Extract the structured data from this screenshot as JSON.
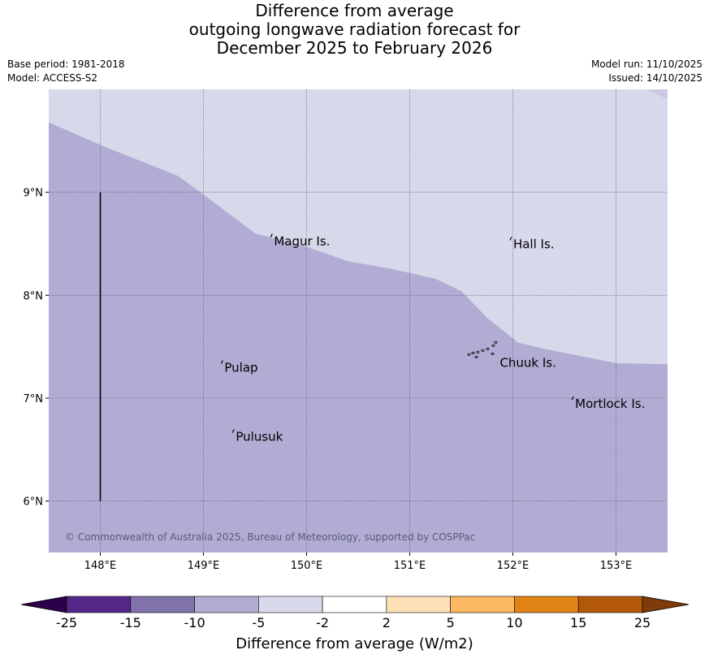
{
  "title": {
    "line1": "Difference from average",
    "line2": "outgoing longwave radiation forecast for",
    "line3": "December 2025 to February 2026"
  },
  "meta": {
    "base_period": "Base period: 1981-2018",
    "model": "Model: ACCESS-S2",
    "model_run": "Model run: 11/10/2025",
    "issued": "Issued: 14/10/2025"
  },
  "map": {
    "lon_range": [
      147.5,
      153.5
    ],
    "lat_range": [
      5.5,
      10.0
    ],
    "lon_ticks": [
      {
        "value": 148,
        "label": "148°E"
      },
      {
        "value": 149,
        "label": "149°E"
      },
      {
        "value": 150,
        "label": "150°E"
      },
      {
        "value": 151,
        "label": "151°E"
      },
      {
        "value": 152,
        "label": "152°E"
      },
      {
        "value": 153,
        "label": "153°E"
      }
    ],
    "lat_ticks": [
      {
        "value": 9,
        "label": "9°N"
      },
      {
        "value": 8,
        "label": "8°N"
      },
      {
        "value": 7,
        "label": "7°N"
      },
      {
        "value": 6,
        "label": "6°N"
      }
    ],
    "colors": {
      "band_minus10_minus5": "#b1acd3",
      "band_minus5_minus2": "#d8d8eb",
      "grid": "#555577",
      "boundary": "#000000"
    },
    "boundary_line": {
      "lon": 148,
      "lat_from": 6,
      "lat_to": 9
    },
    "contour_minus5": [
      [
        147.5,
        9.68
      ],
      [
        148.0,
        9.46
      ],
      [
        148.75,
        9.16
      ],
      [
        149.0,
        8.98
      ],
      [
        149.5,
        8.6
      ],
      [
        150.0,
        8.47
      ],
      [
        150.4,
        8.33
      ],
      [
        150.8,
        8.26
      ],
      [
        151.25,
        8.16
      ],
      [
        151.5,
        8.04
      ],
      [
        151.75,
        7.78
      ],
      [
        152.05,
        7.54
      ],
      [
        152.3,
        7.48
      ],
      [
        152.7,
        7.4
      ],
      [
        153.0,
        7.34
      ],
      [
        153.5,
        7.33
      ]
    ],
    "islands": [
      {
        "name": "Magur Is.",
        "lon": 149.66,
        "lat": 8.58
      },
      {
        "name": "Hall Is.",
        "lon": 151.98,
        "lat": 8.55
      },
      {
        "name": "Pulap",
        "lon": 149.18,
        "lat": 7.35
      },
      {
        "name": "Chuuk Is.",
        "lon": 151.85,
        "lat": 7.4
      },
      {
        "name": "Mortlock Is.",
        "lon": 152.58,
        "lat": 7.0
      },
      {
        "name": "Pulusuk",
        "lon": 149.29,
        "lat": 6.68
      }
    ],
    "copyright": "© Commonwealth of Australia 2025, Bureau of Meteorology, supported by COSPPac"
  },
  "colorbar": {
    "label": "Difference from average (W/m2)",
    "ticks": [
      "-25",
      "-15",
      "-10",
      "-5",
      "-2",
      "2",
      "5",
      "10",
      "15",
      "25"
    ],
    "colors": [
      "#542788",
      "#8073ac",
      "#b2abd2",
      "#d8daeb",
      "#ffffff",
      "#fee0b6",
      "#fdb863",
      "#e08214",
      "#b35806"
    ],
    "under_color": "#2d004b",
    "over_color": "#7f3b08"
  }
}
